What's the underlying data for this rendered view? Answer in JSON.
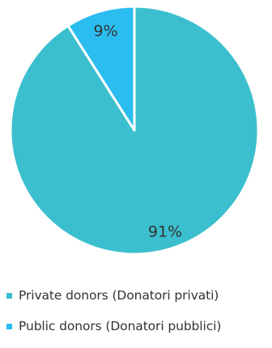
{
  "chart_data": {
    "type": "pie",
    "title": "",
    "slices": [
      {
        "label": "Private donors (Donatori privati)",
        "value": 91,
        "value_label": "91%",
        "color": "#3bbfce"
      },
      {
        "label": "Public donors (Donatori pubblici)",
        "value": 9,
        "value_label": "9%",
        "color": "#2bbdef"
      }
    ],
    "start_angle": "12 o'clock",
    "direction": "clockwise",
    "legend_position": "bottom"
  }
}
